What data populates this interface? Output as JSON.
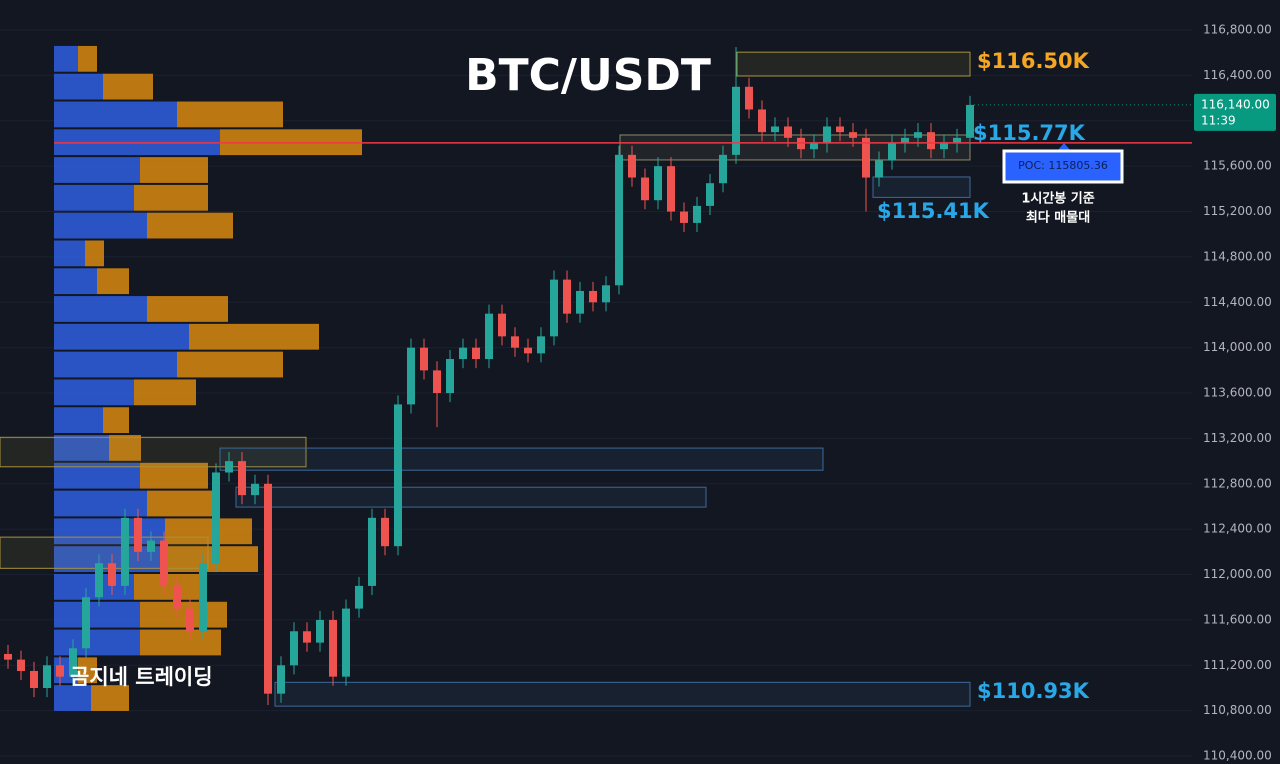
{
  "chart_data": {
    "type": "candlestick",
    "title": "BTC/USDT",
    "watermark": "곰지네 트레이딩",
    "ylim": [
      110330,
      117065
    ],
    "yticks": [
      {
        "value": 110400,
        "label": "110,400.00"
      },
      {
        "value": 110800,
        "label": "110,800.00"
      },
      {
        "value": 111200,
        "label": "111,200.00"
      },
      {
        "value": 111600,
        "label": "111,600.00"
      },
      {
        "value": 112000,
        "label": "112,000.00"
      },
      {
        "value": 112400,
        "label": "112,400.00"
      },
      {
        "value": 112800,
        "label": "112,800.00"
      },
      {
        "value": 113200,
        "label": "113,200.00"
      },
      {
        "value": 113600,
        "label": "113,600.00"
      },
      {
        "value": 114000,
        "label": "114,000.00"
      },
      {
        "value": 114400,
        "label": "114,400.00"
      },
      {
        "value": 114800,
        "label": "114,800.00"
      },
      {
        "value": 115200,
        "label": "115,200.00"
      },
      {
        "value": 115600,
        "label": "115,600.00"
      },
      {
        "value": 116000,
        "label": "116,000.00"
      },
      {
        "value": 116400,
        "label": "116,400.00"
      },
      {
        "value": 116800,
        "label": "116,800.00"
      }
    ],
    "grid": true,
    "up_color": "#26a69a",
    "down_color": "#ef5350",
    "open": [
      111300,
      111250,
      111150,
      111000,
      111200,
      111100,
      111350,
      111800,
      112100,
      111900,
      112500,
      112200,
      112300,
      111900,
      111700,
      111500,
      112100,
      112900,
      113000,
      112700,
      112800,
      110950,
      111200,
      111500,
      111400,
      111600,
      111100,
      111700,
      111900,
      112500,
      112250,
      113500,
      114000,
      113800,
      113600,
      113900,
      114000,
      113900,
      114300,
      114100,
      114000,
      113950,
      114100,
      114600,
      114300,
      114500,
      114400,
      114550,
      115700,
      115500,
      115300,
      115600,
      115200,
      115100,
      115250,
      115450,
      115700,
      116300,
      116100,
      115900,
      115950,
      115850,
      115750,
      115800,
      115950,
      115900,
      115850,
      115500,
      115650,
      115800,
      115850,
      115900,
      115750,
      115800,
      115850
    ],
    "high": [
      111380,
      111330,
      111230,
      111280,
      111280,
      111430,
      111880,
      112180,
      112180,
      112580,
      112580,
      112380,
      112380,
      111980,
      111780,
      112180,
      112980,
      113080,
      113080,
      112880,
      112880,
      111280,
      111580,
      111580,
      111680,
      111680,
      111780,
      111980,
      112580,
      112580,
      113580,
      114080,
      114080,
      113880,
      113980,
      114080,
      114080,
      114380,
      114380,
      114180,
      114080,
      114180,
      114680,
      114680,
      114580,
      114580,
      114630,
      115780,
      115780,
      115580,
      115680,
      115680,
      115280,
      115330,
      115530,
      115780,
      116650,
      116380,
      116180,
      116030,
      116030,
      115930,
      115880,
      116030,
      116030,
      115980,
      115930,
      115730,
      115880,
      115930,
      115980,
      115980,
      115880,
      115930,
      116220
    ],
    "low": [
      111170,
      111070,
      110920,
      110920,
      111020,
      111020,
      111270,
      111720,
      111820,
      111820,
      112120,
      112120,
      111820,
      111620,
      111420,
      111420,
      112020,
      112820,
      112620,
      112620,
      110850,
      110870,
      111120,
      111320,
      111320,
      111020,
      111020,
      111620,
      111820,
      112170,
      112170,
      113420,
      113720,
      113300,
      113520,
      113820,
      113820,
      113820,
      114020,
      113920,
      113870,
      113870,
      114020,
      114220,
      114220,
      114320,
      114320,
      114470,
      115420,
      115220,
      115220,
      115120,
      115020,
      115020,
      115170,
      115370,
      115620,
      116020,
      115820,
      115820,
      115770,
      115670,
      115670,
      115720,
      115820,
      115770,
      115200,
      115420,
      115570,
      115720,
      115770,
      115670,
      115670,
      115720,
      115770
    ],
    "close": [
      111250,
      111150,
      111000,
      111200,
      111100,
      111350,
      111800,
      112100,
      111900,
      112500,
      112200,
      112300,
      111900,
      111700,
      111500,
      112100,
      112900,
      113000,
      112700,
      112800,
      110950,
      111200,
      111500,
      111400,
      111600,
      111100,
      111700,
      111900,
      112500,
      112250,
      113500,
      114000,
      113800,
      113600,
      113900,
      114000,
      113900,
      114300,
      114100,
      114000,
      113950,
      114100,
      114600,
      114300,
      114500,
      114400,
      114550,
      115700,
      115500,
      115300,
      115600,
      115200,
      115100,
      115250,
      115450,
      115700,
      116300,
      116100,
      115900,
      115950,
      115850,
      115750,
      115800,
      115950,
      115900,
      115850,
      115500,
      115650,
      115800,
      115850,
      115900,
      115750,
      115800,
      115850,
      116140
    ],
    "profile": {
      "bins": [
        110780,
        111025,
        111270,
        111515,
        111760,
        112005,
        112250,
        112495,
        112740,
        112985,
        113230,
        113475,
        113720,
        113965,
        114210,
        114455,
        114700,
        114945,
        115190,
        115435,
        115680,
        115925,
        116170,
        116415,
        116660
      ],
      "buy": [
        37,
        24,
        86,
        86,
        80,
        111,
        111,
        93,
        86,
        55,
        49,
        80,
        123,
        135,
        93,
        43,
        31,
        93,
        80,
        86,
        166,
        123,
        49,
        24
      ],
      "sell": [
        38,
        19,
        81,
        87,
        68,
        93,
        87,
        68,
        68,
        32,
        26,
        62,
        106,
        130,
        81,
        32,
        19,
        86,
        74,
        68,
        142,
        106,
        50,
        19
      ],
      "buy_color": "#2f5fe0",
      "sell_color": "#d9880f"
    },
    "zones": [
      {
        "low": 112950,
        "high": 113210,
        "color": "#a8923a"
      },
      {
        "low": 112055,
        "high": 112330,
        "color": "#a8923a"
      },
      {
        "low": 112920,
        "high": 113115,
        "color": "#3d6a9a"
      },
      {
        "low": 112595,
        "high": 112770,
        "color": "#3d6a9a"
      },
      {
        "low": 110840,
        "high": 111050,
        "color": "#3d6a9a",
        "label": "$110.93K",
        "label_color": "#29a8e8"
      },
      {
        "low": 116395,
        "high": 116605,
        "color": "#a8923a",
        "label": "$116.50K",
        "label_color": "#f5a623"
      },
      {
        "low": 115325,
        "high": 115505,
        "color": "#3d6a9a",
        "label": "$115.41K",
        "label_color": "#29a8e8"
      },
      {
        "low": 115655,
        "high": 115875,
        "color": "#8a8a6a",
        "label": "$115.77K",
        "label_color": "#29a8e8"
      }
    ],
    "poc": {
      "value": 115805.36,
      "label": "POC: 115805.36",
      "color": "#f23645"
    },
    "poc_note": [
      "1시간봉 기준",
      "최다 매물대"
    ],
    "last_price": {
      "value": 116140,
      "label": "116,140.00",
      "countdown": "11:39",
      "color": "#089981"
    }
  }
}
